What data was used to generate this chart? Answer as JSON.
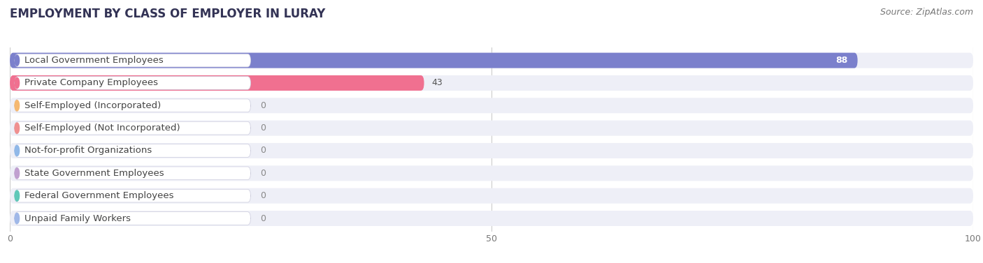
{
  "title": "EMPLOYMENT BY CLASS OF EMPLOYER IN LURAY",
  "source": "Source: ZipAtlas.com",
  "categories": [
    "Local Government Employees",
    "Private Company Employees",
    "Self-Employed (Incorporated)",
    "Self-Employed (Not Incorporated)",
    "Not-for-profit Organizations",
    "State Government Employees",
    "Federal Government Employees",
    "Unpaid Family Workers"
  ],
  "values": [
    88,
    43,
    0,
    0,
    0,
    0,
    0,
    0
  ],
  "bar_colors": [
    "#7b80cc",
    "#f07090",
    "#f5b870",
    "#f09090",
    "#90b8e8",
    "#c0a0d0",
    "#60c8b8",
    "#a0b8e8"
  ],
  "dot_colors": [
    "#7b80cc",
    "#f07090",
    "#f5b870",
    "#f09090",
    "#90b8e8",
    "#c0a0d0",
    "#60c8b8",
    "#a0b8e8"
  ],
  "row_bg_color": "#eeeff7",
  "label_bg_color": "#ffffff",
  "xlim_max": 100,
  "xticks": [
    0,
    50,
    100
  ],
  "title_fontsize": 12,
  "source_fontsize": 9,
  "label_fontsize": 9.5,
  "value_fontsize": 9
}
